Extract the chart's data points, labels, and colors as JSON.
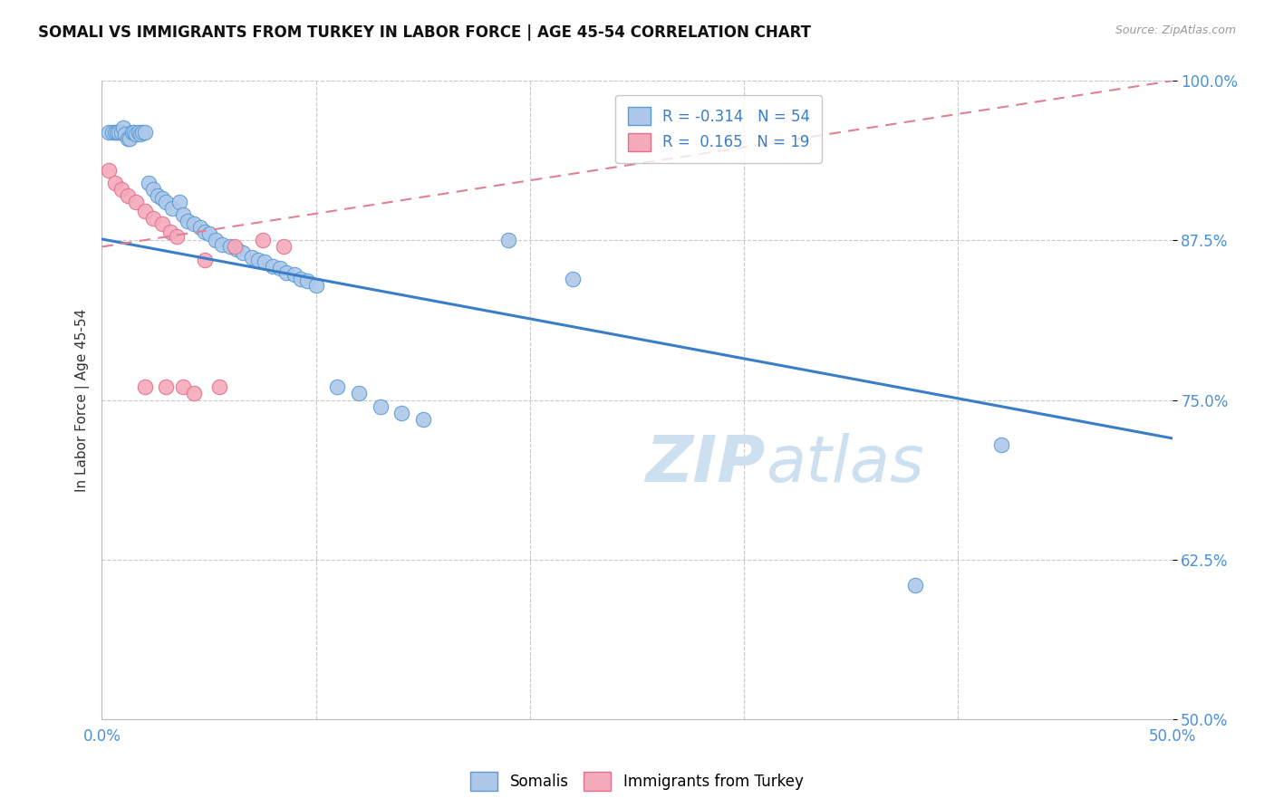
{
  "title": "SOMALI VS IMMIGRANTS FROM TURKEY IN LABOR FORCE | AGE 45-54 CORRELATION CHART",
  "source": "Source: ZipAtlas.com",
  "ylabel": "In Labor Force | Age 45-54",
  "x_min": 0.0,
  "x_max": 0.5,
  "y_min": 0.5,
  "y_max": 1.0,
  "x_ticks": [
    0.0,
    0.1,
    0.2,
    0.3,
    0.4,
    0.5
  ],
  "x_tick_labels": [
    "0.0%",
    "",
    "",
    "",
    "",
    "50.0%"
  ],
  "y_ticks": [
    0.5,
    0.625,
    0.75,
    0.875,
    1.0
  ],
  "y_tick_labels": [
    "50.0%",
    "62.5%",
    "75.0%",
    "87.5%",
    "100.0%"
  ],
  "legend_r_somali": "-0.314",
  "legend_n_somali": "54",
  "legend_r_turkey": "0.165",
  "legend_n_turkey": "19",
  "somali_color": "#adc8e8",
  "turkey_color": "#f5aabb",
  "somali_edge_color": "#5b9bd5",
  "turkey_edge_color": "#e07090",
  "somali_line_color": "#3a7ec8",
  "turkey_line_color": "#e08090",
  "watermark_color": "#cce0f0",
  "somali_x": [
    0.003,
    0.005,
    0.006,
    0.007,
    0.008,
    0.009,
    0.01,
    0.011,
    0.012,
    0.013,
    0.014,
    0.015,
    0.016,
    0.017,
    0.018,
    0.019,
    0.02,
    0.022,
    0.024,
    0.026,
    0.028,
    0.03,
    0.033,
    0.036,
    0.038,
    0.04,
    0.043,
    0.046,
    0.048,
    0.05,
    0.053,
    0.056,
    0.06,
    0.063,
    0.066,
    0.07,
    0.073,
    0.076,
    0.08,
    0.083,
    0.086,
    0.09,
    0.093,
    0.096,
    0.1,
    0.11,
    0.12,
    0.13,
    0.14,
    0.15,
    0.19,
    0.22,
    0.38,
    0.42
  ],
  "somali_y": [
    0.96,
    0.96,
    0.96,
    0.96,
    0.96,
    0.96,
    0.963,
    0.958,
    0.955,
    0.955,
    0.96,
    0.96,
    0.958,
    0.96,
    0.958,
    0.96,
    0.96,
    0.92,
    0.915,
    0.91,
    0.908,
    0.905,
    0.9,
    0.905,
    0.895,
    0.89,
    0.888,
    0.885,
    0.882,
    0.88,
    0.875,
    0.872,
    0.87,
    0.868,
    0.865,
    0.862,
    0.86,
    0.858,
    0.855,
    0.853,
    0.85,
    0.848,
    0.845,
    0.843,
    0.84,
    0.76,
    0.755,
    0.745,
    0.74,
    0.735,
    0.875,
    0.845,
    0.605,
    0.715
  ],
  "turkey_x": [
    0.003,
    0.006,
    0.009,
    0.012,
    0.016,
    0.02,
    0.024,
    0.028,
    0.032,
    0.035,
    0.038,
    0.043,
    0.048,
    0.055,
    0.062,
    0.075,
    0.085,
    0.02,
    0.03
  ],
  "turkey_y": [
    0.93,
    0.92,
    0.915,
    0.91,
    0.905,
    0.898,
    0.892,
    0.888,
    0.882,
    0.878,
    0.76,
    0.755,
    0.86,
    0.76,
    0.87,
    0.875,
    0.87,
    0.76,
    0.76
  ],
  "somali_trend_x": [
    0.0,
    0.5
  ],
  "somali_trend_y": [
    0.876,
    0.72
  ],
  "turkey_trend_x": [
    0.0,
    0.5
  ],
  "turkey_trend_y": [
    0.87,
    1.0
  ]
}
